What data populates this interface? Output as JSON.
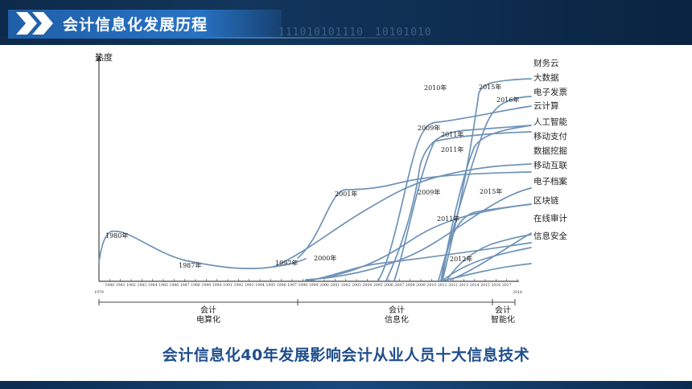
{
  "header": {
    "title": "会计信息化发展历程",
    "binary_1": "111010101110",
    "binary_2": "10101010"
  },
  "colors": {
    "curve": "#6e93b8",
    "axis": "#444444",
    "caption": "#1f4e8c",
    "header_bg": "#0f2f53",
    "title_tab": "#2872c4"
  },
  "chart_data": {
    "type": "line",
    "ylabel": "热度",
    "years": [
      "1979",
      "1980",
      "1981",
      "1982",
      "1983",
      "1984",
      "1985",
      "1986",
      "1987",
      "1988",
      "1989",
      "1990",
      "1991",
      "1992",
      "1993",
      "1994",
      "1995",
      "1996",
      "1997",
      "1998",
      "1999",
      "2000",
      "2001",
      "2002",
      "2003",
      "2004",
      "2005",
      "2006",
      "2007",
      "2008",
      "2009",
      "2010",
      "2011",
      "2012",
      "2013",
      "2014",
      "2015",
      "2016",
      "2017",
      "2018"
    ],
    "technologies": [
      "财务云",
      "大数据",
      "电子发票",
      "云计算",
      "人工智能",
      "移动支付",
      "数据挖掘",
      "移动互联",
      "电子档案",
      "区块链",
      "在线审计",
      "信息安全"
    ],
    "annotations": [
      "1980年",
      "1987年",
      "1997年",
      "2000年",
      "2001年",
      "2009年",
      "2010年",
      "2015年",
      "2016年",
      "2009年",
      "2011年",
      "2011年",
      "2011年",
      "2012年",
      "2015年"
    ],
    "eras": [
      {
        "line1": "会计",
        "line2": "电算化"
      },
      {
        "line1": "会计",
        "line2": "信息化"
      },
      {
        "line1": "会计",
        "line2": "智能化"
      }
    ]
  },
  "caption": "会计信息化40年发展影响会计从业人员十大信息技术"
}
